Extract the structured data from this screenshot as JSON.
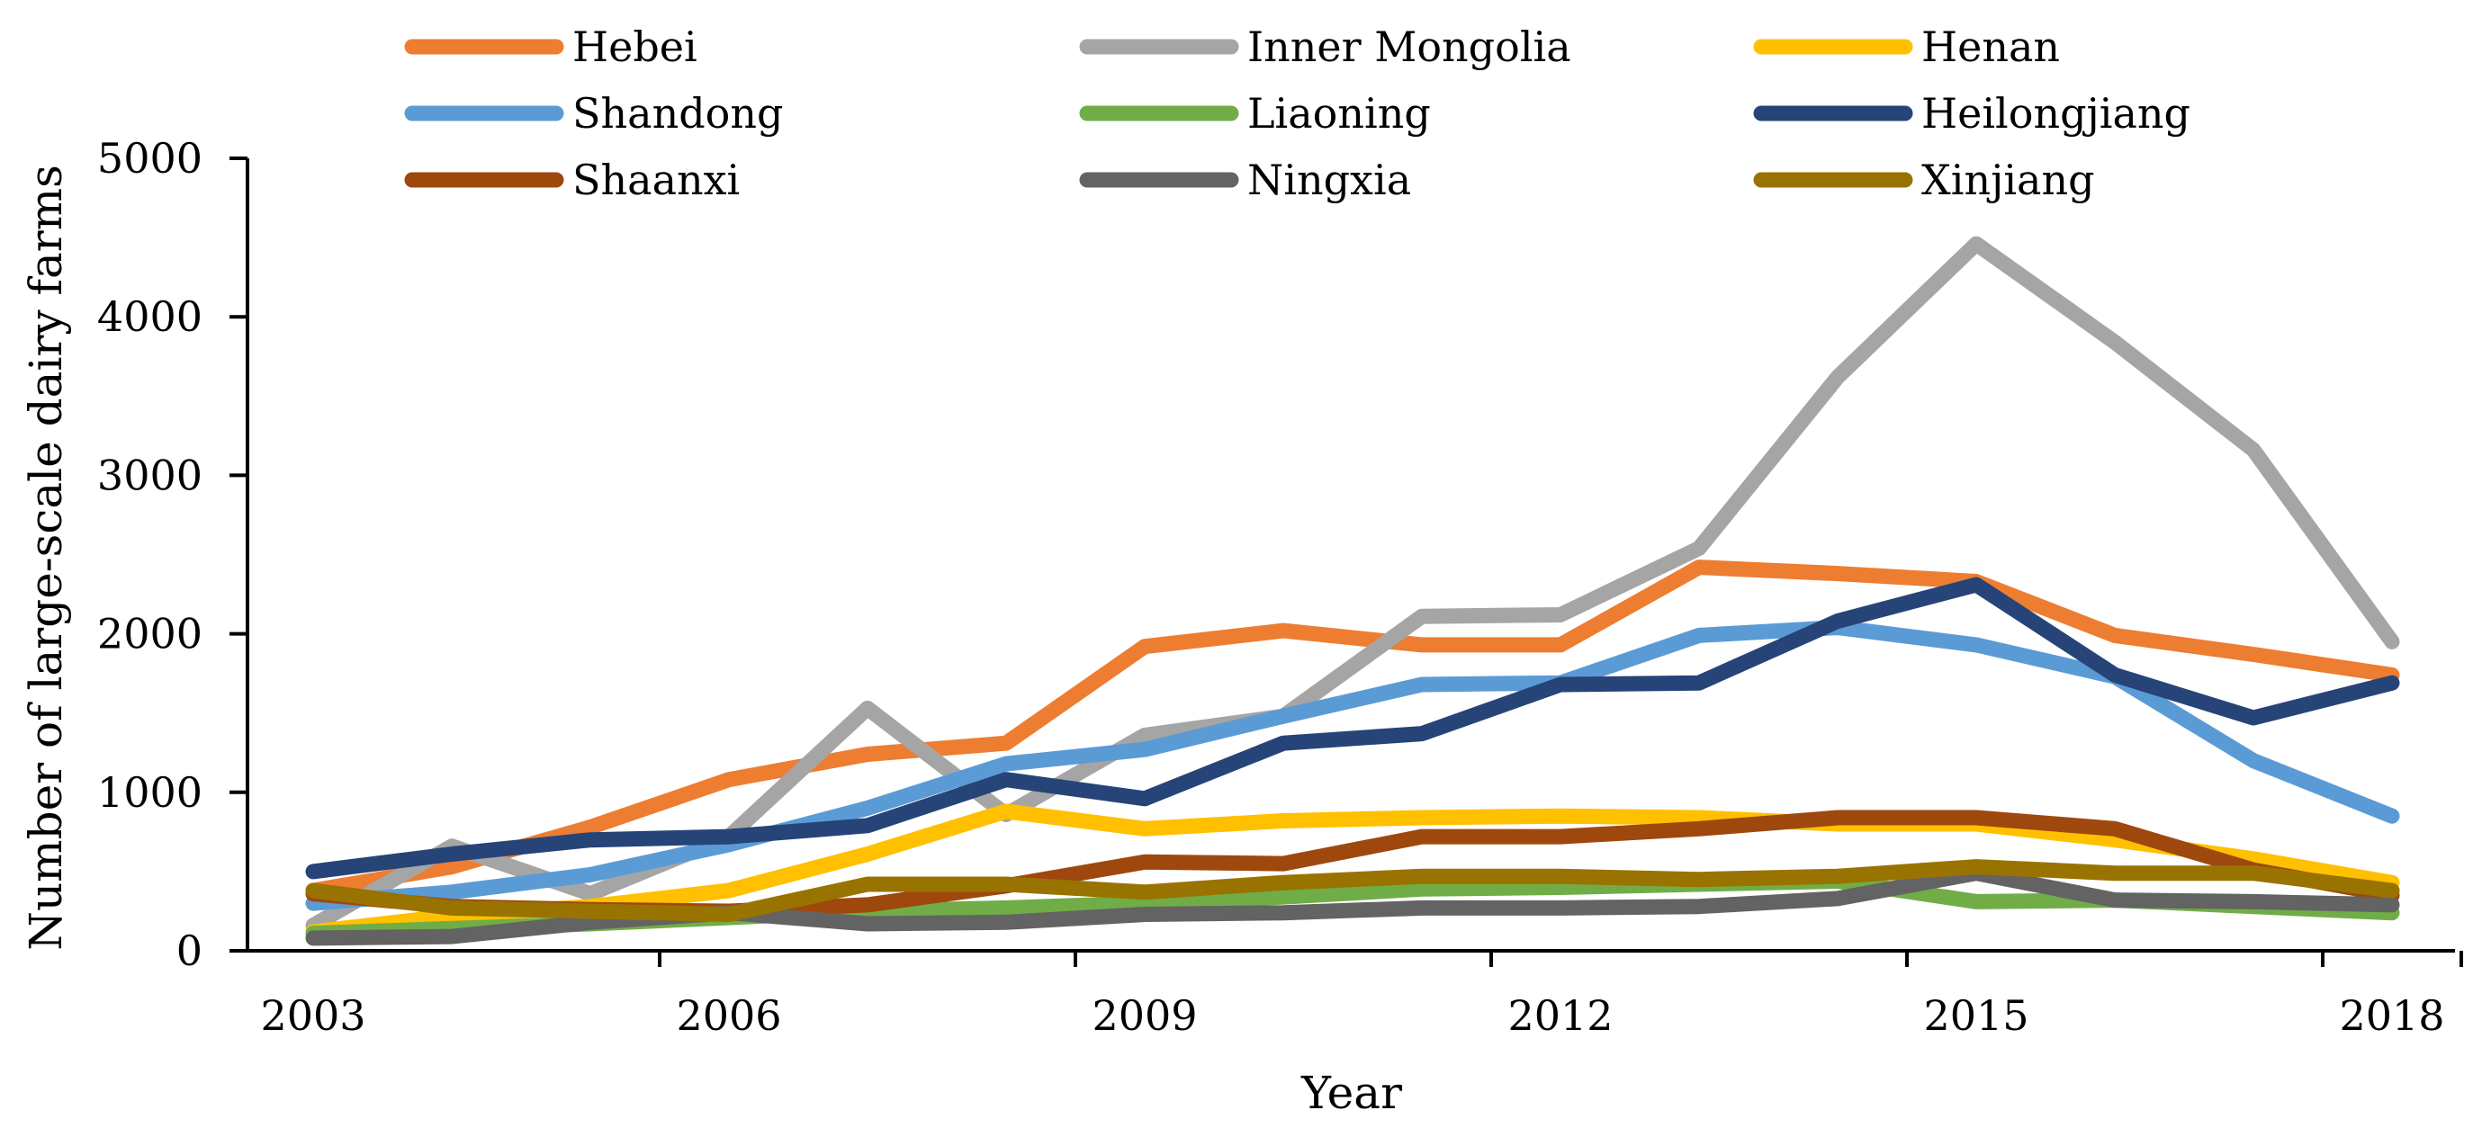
{
  "chart_data": {
    "type": "line",
    "title": "",
    "xlabel": "Year",
    "ylabel": "Number of large-scale dairy farms",
    "ylim": [
      0,
      5000
    ],
    "yticks": [
      0,
      1000,
      2000,
      3000,
      4000,
      5000
    ],
    "xlim": [
      2003,
      2018
    ],
    "xticks": [
      2003,
      2006,
      2009,
      2012,
      2015,
      2018
    ],
    "legend_position": "top",
    "x": [
      2003,
      2004,
      2005,
      2006,
      2007,
      2008,
      2009,
      2010,
      2011,
      2012,
      2013,
      2014,
      2015,
      2016,
      2017,
      2018
    ],
    "series": [
      {
        "name": "Hebei",
        "color": "#ED7D31",
        "values": [
          380,
          530,
          780,
          1080,
          1240,
          1310,
          1920,
          2020,
          1930,
          1930,
          2420,
          2380,
          2330,
          1990,
          1870,
          1740
        ]
      },
      {
        "name": "Inner Mongolia",
        "color": "#A5A5A5",
        "values": [
          160,
          660,
          360,
          720,
          1530,
          860,
          1360,
          1480,
          2110,
          2120,
          2540,
          3620,
          4460,
          3840,
          3160,
          1950
        ]
      },
      {
        "name": "Henan",
        "color": "#FFC000",
        "values": [
          120,
          220,
          280,
          380,
          610,
          880,
          770,
          820,
          840,
          850,
          840,
          800,
          800,
          700,
          580,
          430
        ]
      },
      {
        "name": "Shandong",
        "color": "#5B9BD5",
        "values": [
          300,
          370,
          480,
          670,
          900,
          1180,
          1270,
          1480,
          1680,
          1690,
          1990,
          2040,
          1930,
          1730,
          1200,
          850
        ]
      },
      {
        "name": "Liaoning",
        "color": "#70AD47",
        "values": [
          110,
          140,
          170,
          210,
          250,
          270,
          300,
          340,
          390,
          400,
          420,
          440,
          310,
          320,
          280,
          240
        ]
      },
      {
        "name": "Heilongjiang",
        "color": "#264478",
        "values": [
          500,
          610,
          700,
          720,
          790,
          1080,
          960,
          1310,
          1370,
          1680,
          1690,
          2080,
          2310,
          1740,
          1470,
          1690
        ]
      },
      {
        "name": "Shaanxi",
        "color": "#9E480E",
        "values": [
          360,
          280,
          260,
          250,
          290,
          410,
          560,
          550,
          720,
          720,
          770,
          840,
          840,
          770,
          510,
          350
        ]
      },
      {
        "name": "Ningxia",
        "color": "#636363",
        "values": [
          80,
          90,
          180,
          240,
          170,
          180,
          230,
          240,
          270,
          270,
          280,
          330,
          490,
          320,
          310,
          290
        ]
      },
      {
        "name": "Xinjiang",
        "color": "#997300",
        "values": [
          380,
          270,
          250,
          230,
          420,
          420,
          370,
          430,
          470,
          470,
          450,
          470,
          530,
          490,
          490,
          380
        ]
      }
    ]
  }
}
